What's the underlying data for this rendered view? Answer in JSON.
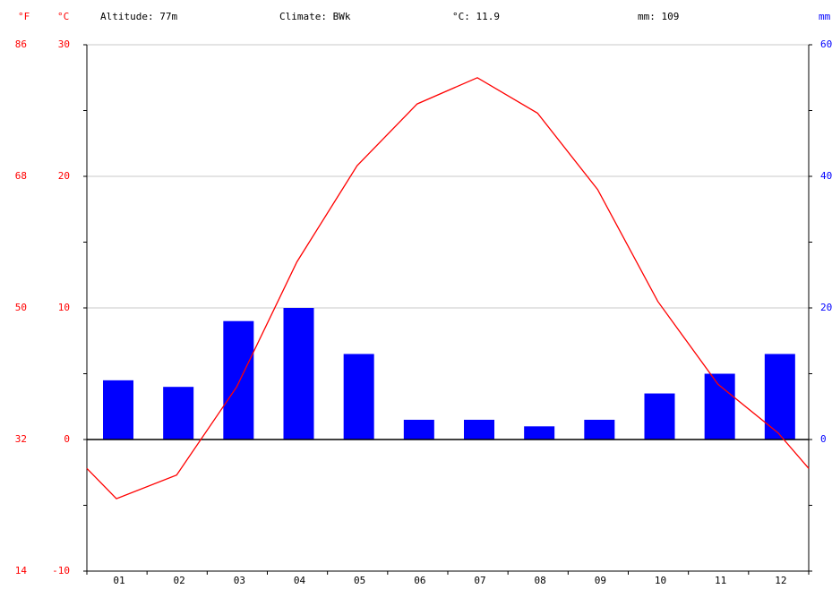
{
  "header": {
    "unit_f": "°F",
    "unit_c": "°C",
    "altitude": "Altitude: 77m",
    "climate": "Climate: BWk",
    "avg_temp": "°C: 11.9",
    "precip_total": "mm: 109",
    "unit_mm": "mm"
  },
  "colors": {
    "temperature": "#ff0000",
    "precipitation": "#0000ff",
    "axis_f": "#ff0000",
    "axis_c": "#ff0000",
    "axis_mm": "#0000ff"
  },
  "chart_data": {
    "type": "bar",
    "categories": [
      "01",
      "02",
      "03",
      "04",
      "05",
      "06",
      "07",
      "08",
      "09",
      "10",
      "11",
      "12"
    ],
    "series": [
      {
        "type": "bar",
        "axis": "mm",
        "values": [
          9,
          8,
          18,
          20,
          13,
          3,
          3,
          2,
          3,
          7,
          10,
          13
        ]
      },
      {
        "type": "line",
        "axis": "°C",
        "values": [
          -4.5,
          -2.7,
          4,
          13.5,
          20.8,
          25.5,
          27.5,
          24.8,
          19,
          10.5,
          4.2,
          0.5
        ],
        "start": -2.2,
        "end": -2.2
      }
    ],
    "y_left_c": {
      "label": "°C",
      "lim": [
        -10,
        30
      ],
      "ticks": [
        "-10",
        "0",
        "10",
        "20",
        "30"
      ]
    },
    "y_left_f": {
      "label": "°F",
      "ticks": [
        "14",
        "32",
        "50",
        "68",
        "86"
      ]
    },
    "y_right_mm": {
      "label": "mm",
      "lim": [
        -20,
        60
      ],
      "ticks": [
        "0",
        "20",
        "40",
        "60"
      ]
    },
    "grid": true
  }
}
